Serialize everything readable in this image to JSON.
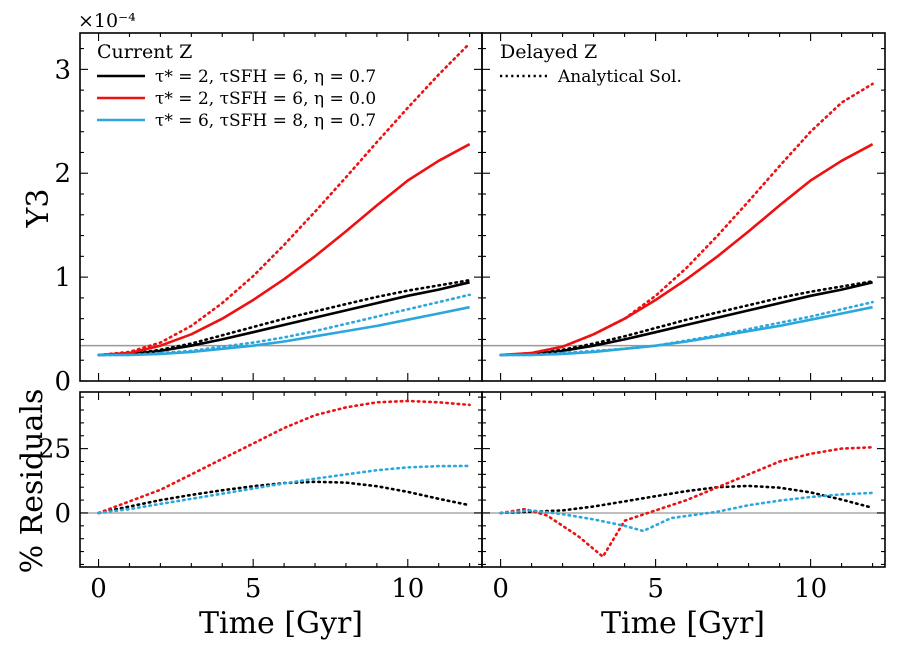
{
  "figure": {
    "exponent_label": "×10⁻⁴"
  },
  "colors": {
    "black": "#000000",
    "red": "#ee1111",
    "blue": "#2aa7dd",
    "ref": "#999999",
    "zero": "#aaaaaa"
  },
  "chart_data": [
    {
      "id": "top-left",
      "type": "line",
      "title": "Current Z",
      "xlabel": "",
      "ylabel": "Y3",
      "xlim": [
        -0.6,
        12.4
      ],
      "ylim": [
        0,
        3.35
      ],
      "xticks": [
        0,
        5,
        10
      ],
      "yticks": [
        0,
        1,
        2,
        3
      ],
      "ytick_labels": [
        "0",
        "1",
        "2",
        "3"
      ],
      "y_scale_note": "×10⁻⁴",
      "reference_line": 0.34,
      "legend": [
        {
          "label": "τ* = 2, τSFH = 6, η = 0.7",
          "color": "#000000",
          "style": "solid"
        },
        {
          "label": "τ* = 2, τSFH = 6, η = 0.0",
          "color": "#ee1111",
          "style": "solid"
        },
        {
          "label": "τ* = 6, τSFH = 8, η = 0.7",
          "color": "#2aa7dd",
          "style": "solid"
        }
      ],
      "series": [
        {
          "name": "black-solid",
          "color": "#000000",
          "style": "solid",
          "x": [
            0,
            1,
            2,
            3,
            4,
            5,
            6,
            7,
            8,
            9,
            10,
            11,
            12
          ],
          "values": [
            0.25,
            0.26,
            0.29,
            0.34,
            0.4,
            0.47,
            0.54,
            0.61,
            0.68,
            0.75,
            0.82,
            0.88,
            0.95
          ]
        },
        {
          "name": "black-dotted",
          "color": "#000000",
          "style": "dotted",
          "x": [
            0,
            1,
            2,
            3,
            4,
            5,
            6,
            7,
            8,
            9,
            10,
            11,
            12
          ],
          "values": [
            0.25,
            0.26,
            0.3,
            0.36,
            0.44,
            0.52,
            0.6,
            0.67,
            0.74,
            0.81,
            0.87,
            0.92,
            0.97
          ]
        },
        {
          "name": "red-solid",
          "color": "#ee1111",
          "style": "solid",
          "x": [
            0,
            1,
            2,
            3,
            4,
            5,
            6,
            7,
            8,
            9,
            10,
            11,
            12
          ],
          "values": [
            0.25,
            0.27,
            0.34,
            0.45,
            0.6,
            0.78,
            0.98,
            1.2,
            1.44,
            1.69,
            1.93,
            2.12,
            2.28
          ]
        },
        {
          "name": "red-dotted",
          "color": "#ee1111",
          "style": "dotted",
          "x": [
            0,
            1,
            2,
            3,
            4,
            5,
            6,
            7,
            8,
            9,
            10,
            11,
            12
          ],
          "values": [
            0.25,
            0.28,
            0.37,
            0.53,
            0.75,
            1.01,
            1.31,
            1.63,
            1.96,
            2.3,
            2.63,
            2.95,
            3.25
          ]
        },
        {
          "name": "blue-solid",
          "color": "#2aa7dd",
          "style": "solid",
          "x": [
            0,
            1,
            2,
            3,
            4,
            5,
            6,
            7,
            8,
            9,
            10,
            11,
            12
          ],
          "values": [
            0.25,
            0.25,
            0.26,
            0.28,
            0.31,
            0.34,
            0.38,
            0.43,
            0.48,
            0.53,
            0.59,
            0.65,
            0.71
          ]
        },
        {
          "name": "blue-dotted",
          "color": "#2aa7dd",
          "style": "dotted",
          "x": [
            0,
            1,
            2,
            3,
            4,
            5,
            6,
            7,
            8,
            9,
            10,
            11,
            12
          ],
          "values": [
            0.25,
            0.25,
            0.27,
            0.29,
            0.33,
            0.37,
            0.42,
            0.48,
            0.55,
            0.62,
            0.69,
            0.76,
            0.83
          ]
        }
      ]
    },
    {
      "id": "top-right",
      "type": "line",
      "title": "Delayed Z",
      "xlabel": "",
      "ylabel": "",
      "xlim": [
        -0.6,
        12.4
      ],
      "ylim": [
        0,
        3.35
      ],
      "xticks": [
        0,
        5,
        10
      ],
      "yticks": [
        0,
        1,
        2,
        3
      ],
      "reference_line": 0.34,
      "legend": [
        {
          "label": "Analytical Sol.",
          "color": "#000000",
          "style": "dotted"
        }
      ],
      "series": [
        {
          "name": "black-solid",
          "color": "#000000",
          "style": "solid",
          "x": [
            0,
            1,
            2,
            3,
            4,
            5,
            6,
            7,
            8,
            9,
            10,
            11,
            12
          ],
          "values": [
            0.25,
            0.26,
            0.29,
            0.34,
            0.4,
            0.47,
            0.54,
            0.61,
            0.68,
            0.75,
            0.82,
            0.88,
            0.95
          ]
        },
        {
          "name": "black-dotted",
          "color": "#000000",
          "style": "dotted",
          "x": [
            0,
            1,
            2,
            3,
            4,
            5,
            6,
            7,
            8,
            9,
            10,
            11,
            12
          ],
          "values": [
            0.25,
            0.26,
            0.3,
            0.36,
            0.43,
            0.51,
            0.59,
            0.66,
            0.73,
            0.8,
            0.86,
            0.91,
            0.96
          ]
        },
        {
          "name": "red-solid",
          "color": "#ee1111",
          "style": "solid",
          "x": [
            0,
            1,
            2,
            3,
            4,
            5,
            6,
            7,
            8,
            9,
            10,
            11,
            12
          ],
          "values": [
            0.25,
            0.27,
            0.33,
            0.45,
            0.6,
            0.78,
            0.98,
            1.2,
            1.44,
            1.69,
            1.93,
            2.12,
            2.28
          ]
        },
        {
          "name": "red-dotted",
          "color": "#ee1111",
          "style": "dotted",
          "x": [
            0,
            1,
            2,
            3,
            4,
            5,
            6,
            7,
            8,
            9,
            10,
            11,
            12
          ],
          "values": [
            0.25,
            0.27,
            0.33,
            0.45,
            0.6,
            0.82,
            1.09,
            1.4,
            1.73,
            2.07,
            2.4,
            2.68,
            2.86
          ]
        },
        {
          "name": "blue-solid",
          "color": "#2aa7dd",
          "style": "solid",
          "x": [
            0,
            1,
            2,
            3,
            4,
            5,
            6,
            7,
            8,
            9,
            10,
            11,
            12
          ],
          "values": [
            0.25,
            0.25,
            0.26,
            0.28,
            0.31,
            0.34,
            0.38,
            0.43,
            0.48,
            0.53,
            0.59,
            0.65,
            0.71
          ]
        },
        {
          "name": "blue-dotted",
          "color": "#2aa7dd",
          "style": "dotted",
          "x": [
            0,
            1,
            2,
            3,
            4,
            5,
            6,
            7,
            8,
            9,
            10,
            11,
            12
          ],
          "values": [
            0.25,
            0.25,
            0.27,
            0.29,
            0.31,
            0.34,
            0.39,
            0.44,
            0.5,
            0.56,
            0.62,
            0.69,
            0.76
          ]
        }
      ]
    },
    {
      "id": "bottom-left",
      "type": "line",
      "title": "",
      "xlabel": "Time [Gyr]",
      "ylabel": "% Residuals",
      "xlim": [
        -0.6,
        12.4
      ],
      "ylim": [
        -21,
        47
      ],
      "xticks": [
        0,
        5,
        10
      ],
      "xtick_labels": [
        "0",
        "5",
        "10"
      ],
      "yticks": [
        0,
        25
      ],
      "ytick_labels": [
        "0",
        "25"
      ],
      "zero_line": 0,
      "series": [
        {
          "name": "black-dotted",
          "color": "#000000",
          "style": "dotted",
          "x": [
            0,
            1,
            2,
            3,
            4,
            5,
            6,
            7,
            8,
            9,
            10,
            11,
            12
          ],
          "values": [
            0,
            2.5,
            5,
            7,
            8.8,
            10.4,
            11.6,
            12.1,
            11.8,
            10.4,
            8.2,
            5.5,
            3
          ]
        },
        {
          "name": "red-dotted",
          "color": "#ee1111",
          "style": "dotted",
          "x": [
            0,
            1,
            2,
            3,
            4,
            5,
            6,
            7,
            8,
            9,
            10,
            11,
            12
          ],
          "values": [
            0,
            4.5,
            9,
            15,
            21,
            27,
            33,
            38,
            41,
            43,
            43.5,
            43,
            42
          ]
        },
        {
          "name": "blue-dotted",
          "color": "#2aa7dd",
          "style": "dotted",
          "x": [
            0,
            1,
            2,
            3,
            4,
            5,
            6,
            7,
            8,
            9,
            10,
            11,
            12
          ],
          "values": [
            0,
            1.5,
            3.5,
            5.5,
            7.5,
            9.5,
            11.5,
            13.3,
            15,
            16.6,
            17.7,
            18.2,
            18.3
          ]
        }
      ]
    },
    {
      "id": "bottom-right",
      "type": "line",
      "title": "",
      "xlabel": "Time [Gyr]",
      "ylabel": "",
      "xlim": [
        -0.6,
        12.4
      ],
      "ylim": [
        -21,
        47
      ],
      "xticks": [
        0,
        5,
        10
      ],
      "xtick_labels": [
        "0",
        "5",
        "10"
      ],
      "yticks": [
        0,
        25
      ],
      "zero_line": 0,
      "series": [
        {
          "name": "black-dotted",
          "color": "#000000",
          "style": "dotted",
          "x": [
            0,
            1,
            2,
            3,
            4,
            5,
            6,
            7,
            8,
            9,
            10,
            11,
            12
          ],
          "values": [
            0,
            0.5,
            1,
            2.5,
            4.5,
            6.5,
            8.5,
            10,
            10.5,
            9.8,
            8,
            5.2,
            2
          ]
        },
        {
          "name": "red-dotted",
          "color": "#ee1111",
          "style": "dotted",
          "x": [
            0,
            0.8,
            1.5,
            2.5,
            3.3,
            4,
            5,
            6,
            7,
            8,
            9,
            10,
            11,
            12
          ],
          "values": [
            0,
            1.5,
            -1,
            -9,
            -17,
            -3,
            1,
            5,
            10,
            15,
            20,
            23,
            25,
            25.5
          ]
        },
        {
          "name": "blue-dotted",
          "color": "#2aa7dd",
          "style": "dotted",
          "x": [
            0,
            1,
            2,
            3,
            4,
            4.6,
            5.5,
            7,
            8,
            9,
            10,
            11,
            12
          ],
          "values": [
            0,
            1,
            -0.5,
            -2.5,
            -5,
            -7,
            -2,
            0.5,
            3,
            4.8,
            6.2,
            7.2,
            7.8
          ]
        }
      ]
    }
  ]
}
